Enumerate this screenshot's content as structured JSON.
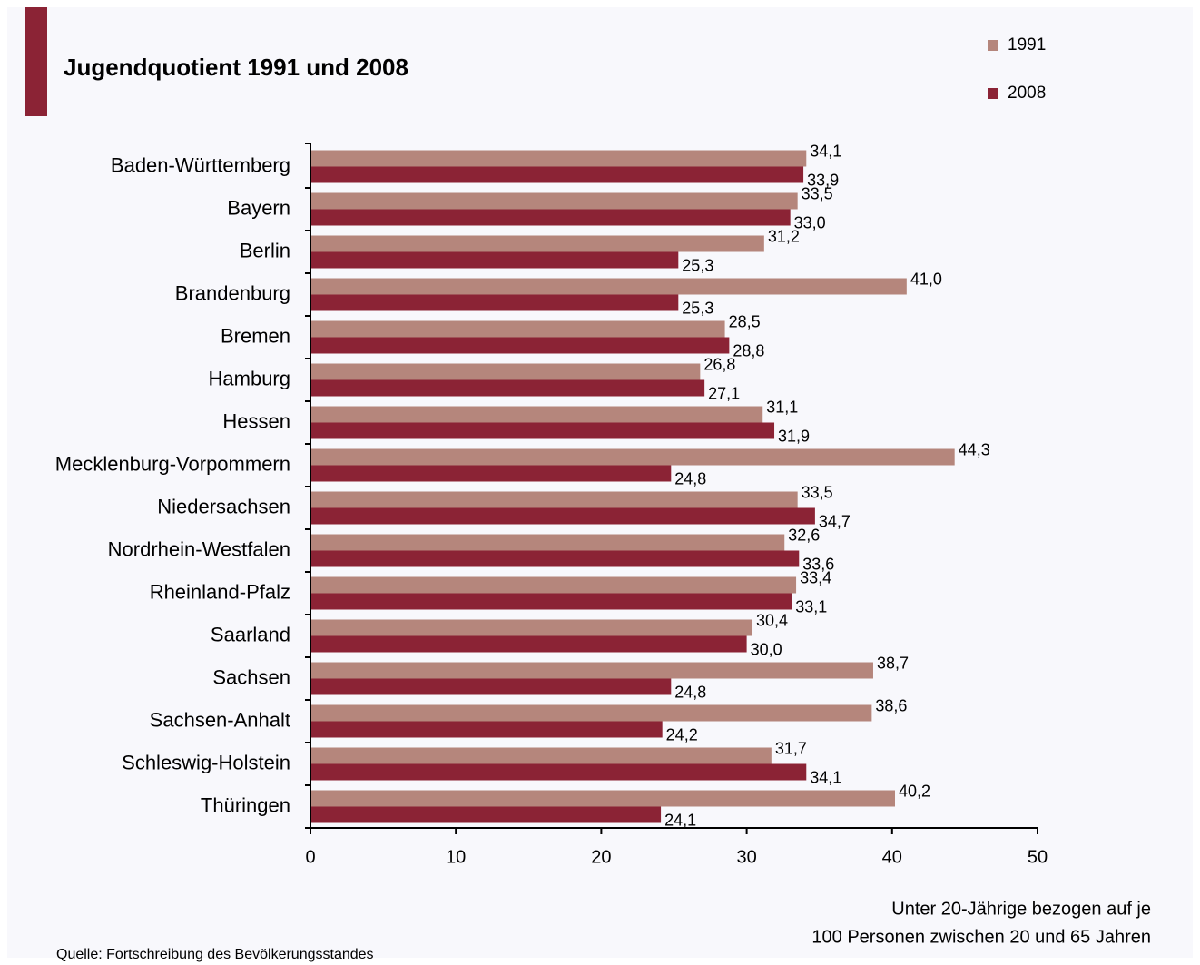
{
  "chart_data": {
    "type": "hbar",
    "title": "Jugendquotient 1991 und 2008",
    "categories": [
      "Baden-Württemberg",
      "Bayern",
      "Berlin",
      "Brandenburg",
      "Bremen",
      "Hamburg",
      "Hessen",
      "Mecklenburg-Vorpommern",
      "Niedersachsen",
      "Nordrhein-Westfalen",
      "Rheinland-Pfalz",
      "Saarland",
      "Sachsen",
      "Sachsen-Anhalt",
      "Schleswig-Holstein",
      "Thüringen"
    ],
    "series": [
      {
        "name": "1991",
        "color": "#b5867c",
        "values": [
          34.1,
          33.5,
          31.2,
          41.0,
          28.5,
          26.8,
          31.1,
          44.3,
          33.5,
          32.6,
          33.4,
          30.4,
          38.7,
          38.6,
          31.7,
          40.2
        ],
        "value_labels": [
          "34,1",
          "33,5",
          "31,2",
          "41,0",
          "28,5",
          "26,8",
          "31,1",
          "44,3",
          "33,5",
          "32,6",
          "33,4",
          "30,4",
          "38,7",
          "38,6",
          "31,7",
          "40,2"
        ]
      },
      {
        "name": "2008",
        "color": "#8b2335",
        "values": [
          33.9,
          33.0,
          25.3,
          25.3,
          28.8,
          27.1,
          31.9,
          24.8,
          34.7,
          33.6,
          33.1,
          30.0,
          24.8,
          24.2,
          34.1,
          24.1
        ],
        "value_labels": [
          "33,9",
          "33,0",
          "25,3",
          "25,3",
          "28,8",
          "27,1",
          "31,9",
          "24,8",
          "34,7",
          "33,6",
          "33,1",
          "30,0",
          "24,8",
          "24,2",
          "34,1",
          "24,1"
        ]
      }
    ],
    "xlim": [
      0,
      50
    ],
    "xticks": [
      0,
      10,
      20,
      30,
      40,
      50
    ],
    "x_label_lines": [
      "Unter 20-Jährige bezogen auf je",
      "100 Personen zwischen 20 und 65 Jahren"
    ],
    "source": "Quelle: Fortschreibung des Bevölkerungsstandes"
  }
}
